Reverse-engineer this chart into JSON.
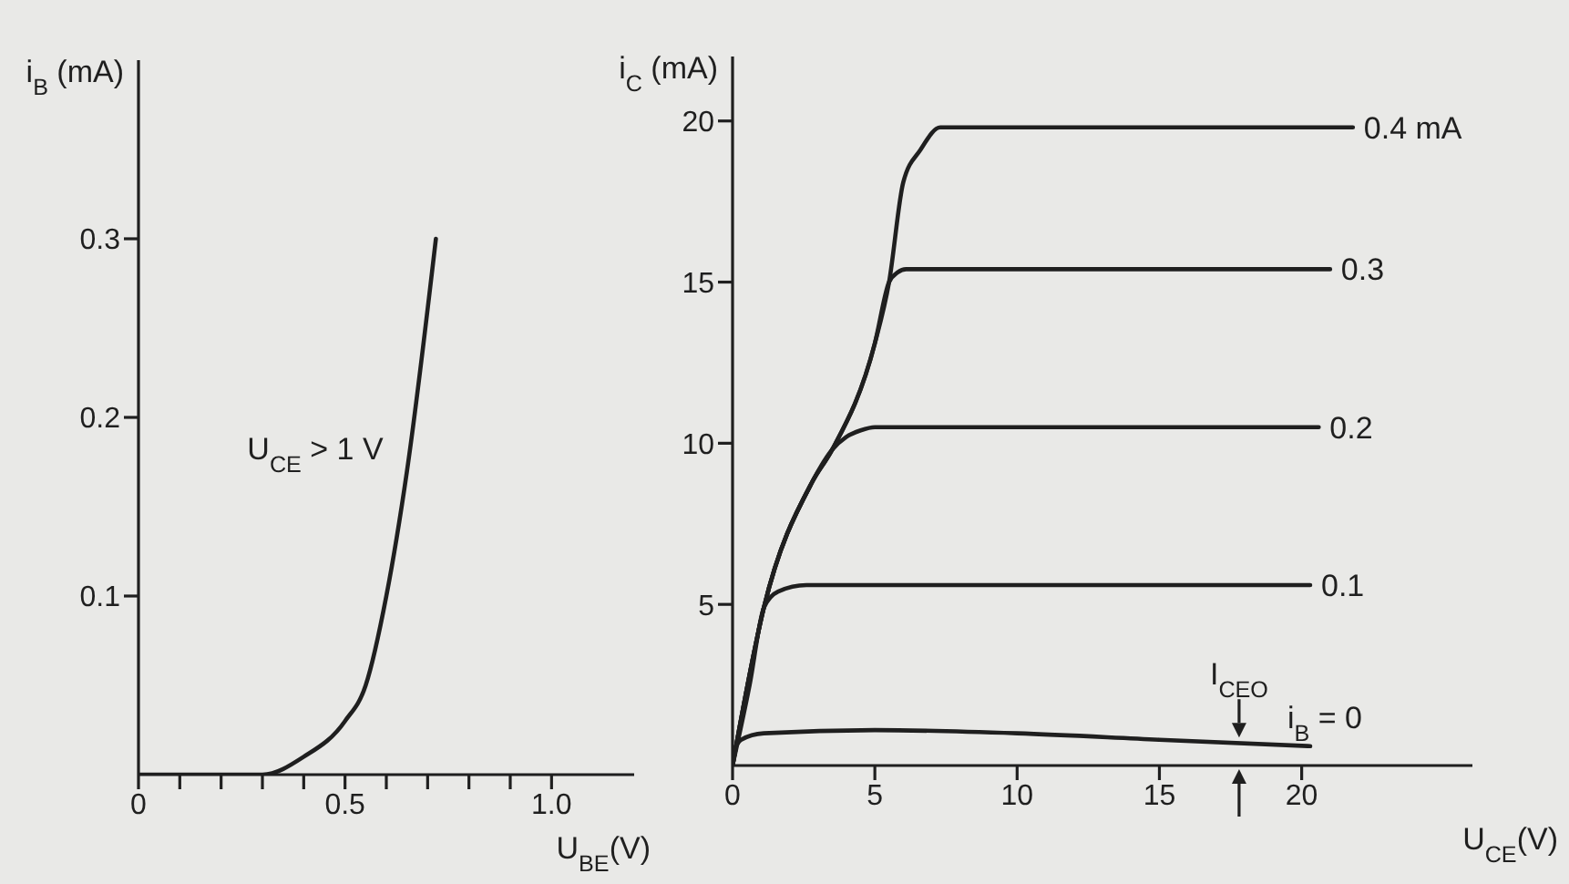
{
  "chart_data": [
    {
      "type": "line",
      "xlabel": "U$_{BE}$(V)",
      "ylabel": "i$_{B}$ (mA)",
      "x": [
        0,
        0.1,
        0.2,
        0.3,
        0.4,
        0.5,
        0.55,
        0.6,
        0.65,
        0.72
      ],
      "series": [
        {
          "color": "#1f1f1f",
          "values": [
            0,
            0,
            0,
            0,
            0.01,
            0.03,
            0.05,
            0.1,
            0.17,
            0.3
          ]
        }
      ],
      "xlim": [
        0,
        1.2
      ],
      "ylim": [
        0,
        0.4
      ],
      "xticks": [
        {
          "value": 0,
          "label": "0"
        },
        {
          "value": 0.1,
          "label": null
        },
        {
          "value": 0.2,
          "label": null
        },
        {
          "value": 0.3,
          "label": null
        },
        {
          "value": 0.4,
          "label": null
        },
        {
          "value": 0.5,
          "label": "0.5"
        },
        {
          "value": 0.6,
          "label": null
        },
        {
          "value": 0.7,
          "label": null
        },
        {
          "value": 0.8,
          "label": null
        },
        {
          "value": 0.9,
          "label": null
        },
        {
          "value": 1,
          "label": "1.0"
        }
      ],
      "yticks": [
        0.1,
        0.2,
        0.3
      ],
      "annotations": [
        "U$_{CE}$ > 1 V"
      ]
    },
    {
      "type": "line",
      "xlabel": "U$_{CE}$(V)",
      "ylabel": "i$_{C}$ (mA)",
      "series": [
        {
          "name": "0.4 mA",
          "color": "#1f1f1f",
          "x": [
            0,
            1.1,
            2.8,
            3.5,
            5,
            5.5,
            6,
            6.6,
            7.3,
            10,
            15,
            20,
            21.8
          ],
          "values": [
            0,
            4.9,
            8.8,
            9.8,
            13.1,
            15,
            18.1,
            19.1,
            19.8,
            19.8,
            19.8,
            19.8,
            19.8
          ]
        },
        {
          "name": "0.3",
          "color": "#1f1f1f",
          "x": [
            0,
            1.1,
            2.8,
            3.5,
            5,
            5.5,
            5.8,
            6.1,
            10,
            15,
            20,
            21
          ],
          "values": [
            0,
            4.9,
            8.8,
            9.8,
            13.1,
            15,
            15.3,
            15.4,
            15.4,
            15.4,
            15.4,
            15.4
          ]
        },
        {
          "name": "0.2",
          "color": "#1f1f1f",
          "x": [
            0,
            1.1,
            2.8,
            3.5,
            4,
            4.5,
            5,
            10,
            15,
            20,
            20.6
          ],
          "values": [
            0,
            4.9,
            8.8,
            9.8,
            10.2,
            10.4,
            10.5,
            10.5,
            10.5,
            10.5,
            10.5
          ]
        },
        {
          "name": "0.1",
          "color": "#1f1f1f",
          "x": [
            0,
            0.6,
            1.1,
            1.6,
            2.6,
            5,
            10,
            15,
            20,
            20.3
          ],
          "values": [
            0,
            2.5,
            4.9,
            5.4,
            5.6,
            5.6,
            5.6,
            5.6,
            5.6,
            5.6
          ]
        },
        {
          "name": "i$_{B}$ = 0",
          "color": "#1f1f1f",
          "x": [
            0,
            0.3,
            1.1,
            5,
            10,
            15,
            20.3
          ],
          "values": [
            0.4,
            0.8,
            1,
            1.1,
            1,
            0.8,
            0.6
          ]
        }
      ],
      "xlim": [
        0,
        26
      ],
      "ylim": [
        0,
        22
      ],
      "xticks": [
        {
          "value": 0,
          "label": "0"
        },
        5,
        10,
        15,
        20
      ],
      "yticks": [
        5,
        10,
        15,
        20
      ],
      "annotations": [
        {
          "text": "I$_{CEO}$",
          "x": 17.8,
          "y": 0.7
        }
      ]
    }
  ]
}
